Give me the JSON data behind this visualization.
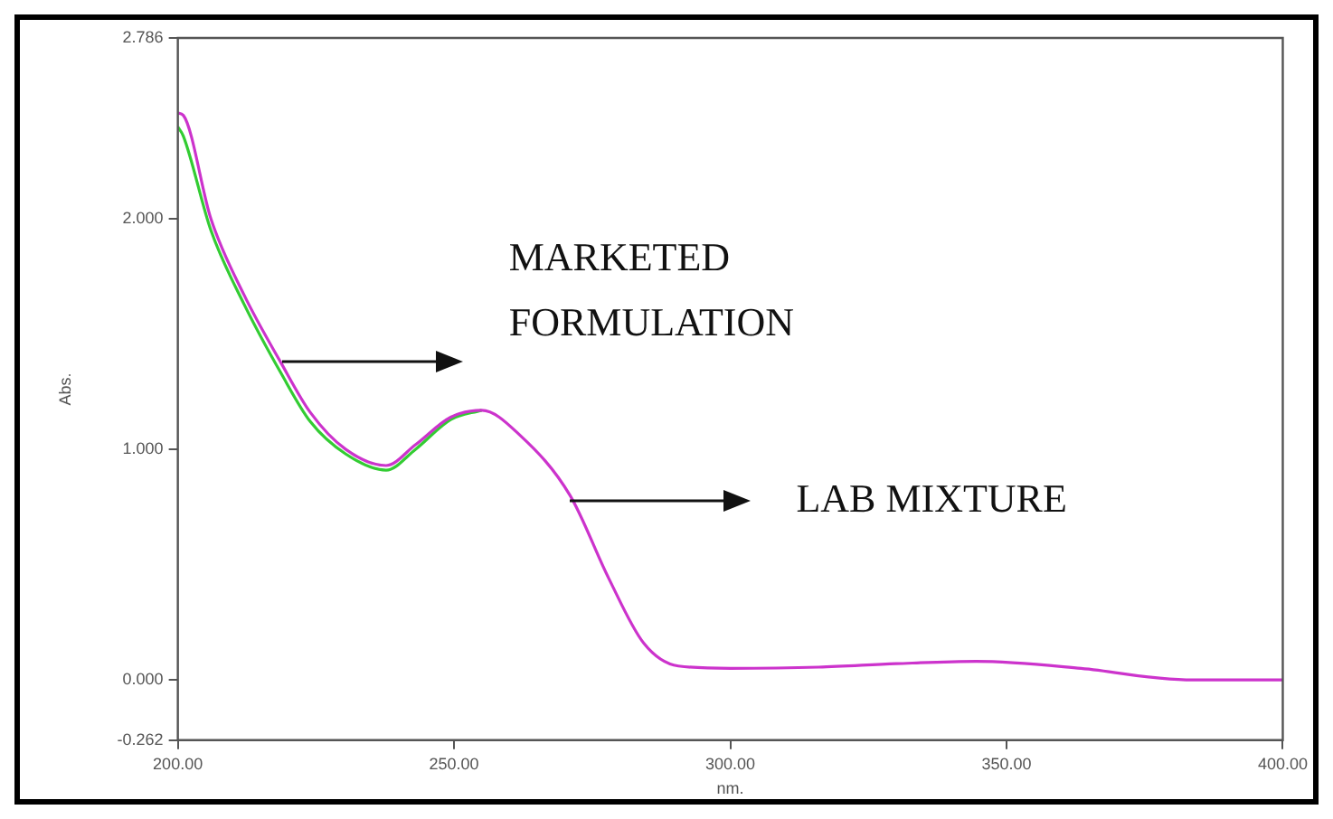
{
  "chart_data": {
    "type": "line",
    "xlabel": "nm.",
    "ylabel": "Abs.",
    "xlim": [
      200,
      400
    ],
    "ylim": [
      -0.262,
      2.786
    ],
    "xticks": [
      {
        "value": 200,
        "label": "200.00"
      },
      {
        "value": 250,
        "label": "250.00"
      },
      {
        "value": 300,
        "label": "300.00"
      },
      {
        "value": 350,
        "label": "350.00"
      },
      {
        "value": 400,
        "label": "400.00"
      }
    ],
    "yticks": [
      {
        "value": -0.262,
        "label": "-0.262"
      },
      {
        "value": 0,
        "label": "0.000"
      },
      {
        "value": 1,
        "label": "1.000"
      },
      {
        "value": 2,
        "label": "2.000"
      },
      {
        "value": 2.786,
        "label": "2.786"
      }
    ],
    "series": [
      {
        "color": "#33cc33",
        "x": [
          200,
          201,
          206,
          212,
          218.7,
          224,
          230.4,
          237.7,
          243,
          249.4,
          255
        ],
        "values": [
          2.4,
          2.36,
          1.95,
          1.63,
          1.33,
          1.12,
          0.98,
          0.91,
          1.0,
          1.13,
          1.17
        ]
      },
      {
        "color": "#cc33cc",
        "x": [
          200,
          201,
          206,
          212,
          218.7,
          224,
          230.4,
          237.7,
          243,
          249.4,
          255,
          262,
          271,
          278,
          284.3,
          290.6,
          300,
          316,
          330,
          344.5,
          363.5,
          382.5,
          400
        ],
        "values": [
          2.46,
          2.45,
          2.0,
          1.67,
          1.375,
          1.16,
          1.0,
          0.93,
          1.02,
          1.14,
          1.17,
          1.06,
          0.8,
          0.44,
          0.16,
          0.06,
          0.05,
          0.055,
          0.07,
          0.08,
          0.05,
          0.0,
          0.0
        ]
      }
    ],
    "annotations": [
      "MARKETED FORMULATION",
      "LAB MIXTURE"
    ],
    "legend": false,
    "grid": false
  }
}
